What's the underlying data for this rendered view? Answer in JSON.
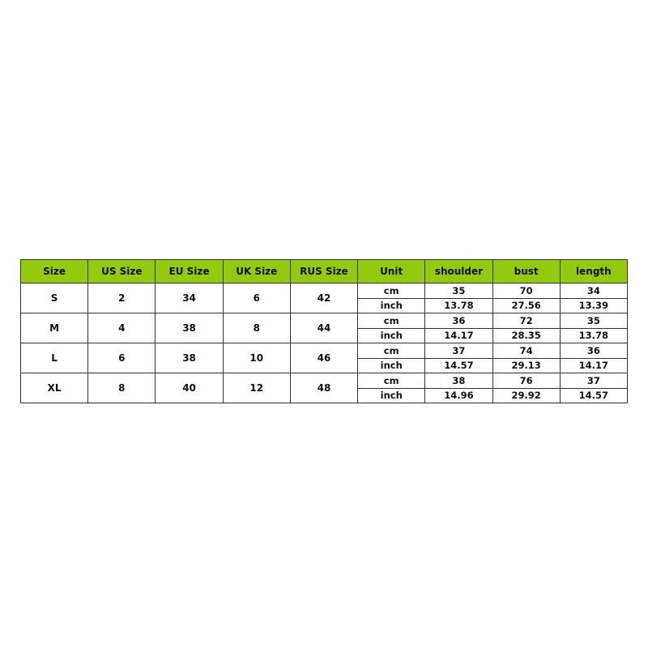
{
  "header": [
    "Size",
    "US Size",
    "EU Size",
    "UK Size",
    "RUS Size",
    "Unit",
    "shoulder",
    "bust",
    "length"
  ],
  "header_color": "#93c90e",
  "rows": [
    {
      "size": "S",
      "us": "2",
      "eu": "34",
      "uk": "6",
      "rus": "42",
      "cm": {
        "unit": "cm",
        "shoulder": "35",
        "bust": "70",
        "length": "34"
      },
      "inch": {
        "unit": "inch",
        "shoulder": "13.78",
        "bust": "27.56",
        "length": "13.39"
      }
    },
    {
      "size": "M",
      "us": "4",
      "eu": "38",
      "uk": "8",
      "rus": "44",
      "cm": {
        "unit": "cm",
        "shoulder": "36",
        "bust": "72",
        "length": "35"
      },
      "inch": {
        "unit": "inch",
        "shoulder": "14.17",
        "bust": "28.35",
        "length": "13.78"
      }
    },
    {
      "size": "L",
      "us": "6",
      "eu": "38",
      "uk": "10",
      "rus": "46",
      "cm": {
        "unit": "cm",
        "shoulder": "37",
        "bust": "74",
        "length": "36"
      },
      "inch": {
        "unit": "inch",
        "shoulder": "14.57",
        "bust": "29.13",
        "length": "14.17"
      }
    },
    {
      "size": "XL",
      "us": "8",
      "eu": "40",
      "uk": "12",
      "rus": "48",
      "cm": {
        "unit": "cm",
        "shoulder": "38",
        "bust": "76",
        "length": "37"
      },
      "inch": {
        "unit": "inch",
        "shoulder": "14.96",
        "bust": "29.92",
        "length": "14.57"
      }
    }
  ]
}
